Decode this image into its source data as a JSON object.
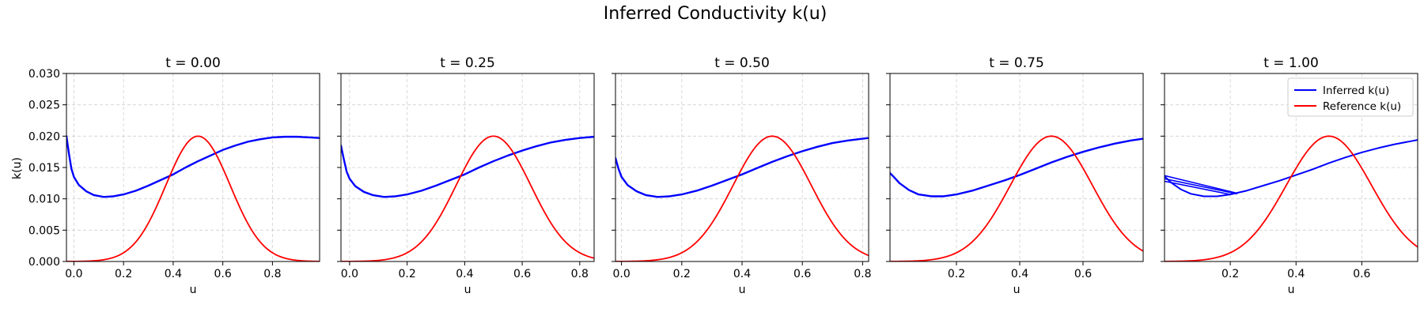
{
  "figure": {
    "title": "Inferred Conductivity k(u)",
    "ylabel": "k(u)",
    "ylim": [
      0,
      0.03
    ],
    "yticks": [
      "0.000",
      "0.005",
      "0.010",
      "0.015",
      "0.020",
      "0.025",
      "0.030"
    ],
    "grid": true,
    "colors": {
      "inferred": "#0000ff",
      "reference": "#ff0000",
      "grid": "#b0b0b0"
    },
    "legend": {
      "placement": "upper-right",
      "panel": 4,
      "entries": [
        {
          "label": "Inferred k(u)",
          "color": "#0000ff"
        },
        {
          "label": "Reference k(u)",
          "color": "#ff0000"
        }
      ]
    }
  },
  "chart_data": [
    {
      "type": "line",
      "title": "t = 0.00",
      "xlabel": "u",
      "xlim": [
        -0.03,
        0.99
      ],
      "xticks": [
        "0.0",
        "0.2",
        "0.4",
        "0.6",
        "0.8"
      ],
      "series": [
        {
          "name": "Inferred k(u)",
          "color": "#0000ff",
          "width": 2.4,
          "points": [
            [
              -0.03,
              0.02
            ],
            [
              -0.02,
              0.0172
            ],
            [
              -0.01,
              0.0148
            ],
            [
              0.0,
              0.0135
            ],
            [
              0.02,
              0.0122
            ],
            [
              0.05,
              0.0112
            ],
            [
              0.08,
              0.0106
            ],
            [
              0.12,
              0.0103
            ],
            [
              0.16,
              0.0104
            ],
            [
              0.2,
              0.0107
            ],
            [
              0.25,
              0.0113
            ],
            [
              0.3,
              0.0121
            ],
            [
              0.35,
              0.013
            ],
            [
              0.4,
              0.0139
            ],
            [
              0.45,
              0.015
            ],
            [
              0.5,
              0.016
            ],
            [
              0.55,
              0.0169
            ],
            [
              0.6,
              0.0178
            ],
            [
              0.65,
              0.0185
            ],
            [
              0.7,
              0.0191
            ],
            [
              0.75,
              0.0195
            ],
            [
              0.8,
              0.0198
            ],
            [
              0.85,
              0.0199
            ],
            [
              0.9,
              0.0199
            ],
            [
              0.95,
              0.0198
            ],
            [
              0.99,
              0.0197
            ]
          ]
        },
        {
          "name": "Reference k(u)",
          "color": "#ff0000",
          "width": 1.8,
          "fn": "gauss",
          "xmin": -0.03,
          "xmax": 0.99
        }
      ]
    },
    {
      "type": "line",
      "title": "t = 0.25",
      "xlabel": "u",
      "xlim": [
        -0.03,
        0.85
      ],
      "xticks": [
        "0.0",
        "0.2",
        "0.4",
        "0.6",
        "0.8"
      ],
      "series": [
        {
          "name": "Inferred k(u)",
          "color": "#0000ff",
          "width": 2.4,
          "points": [
            [
              -0.03,
              0.0185
            ],
            [
              -0.02,
              0.0163
            ],
            [
              -0.01,
              0.0143
            ],
            [
              0.0,
              0.0132
            ],
            [
              0.02,
              0.012
            ],
            [
              0.05,
              0.0111
            ],
            [
              0.08,
              0.0106
            ],
            [
              0.12,
              0.0103
            ],
            [
              0.16,
              0.0104
            ],
            [
              0.2,
              0.0107
            ],
            [
              0.25,
              0.0113
            ],
            [
              0.3,
              0.0121
            ],
            [
              0.35,
              0.013
            ],
            [
              0.4,
              0.0139
            ],
            [
              0.45,
              0.015
            ],
            [
              0.5,
              0.016
            ],
            [
              0.55,
              0.0169
            ],
            [
              0.6,
              0.0177
            ],
            [
              0.65,
              0.0184
            ],
            [
              0.7,
              0.019
            ],
            [
              0.75,
              0.0194
            ],
            [
              0.8,
              0.0197
            ],
            [
              0.85,
              0.0199
            ]
          ]
        },
        {
          "name": "Reference k(u)",
          "color": "#ff0000",
          "width": 1.8,
          "fn": "gauss",
          "xmin": -0.03,
          "xmax": 0.85
        }
      ]
    },
    {
      "type": "line",
      "title": "t = 0.50",
      "xlabel": "u",
      "xlim": [
        -0.02,
        0.82
      ],
      "xticks": [
        "0.0",
        "0.2",
        "0.4",
        "0.6",
        "0.8"
      ],
      "series": [
        {
          "name": "Inferred k(u)",
          "color": "#0000ff",
          "width": 2.4,
          "points": [
            [
              -0.02,
              0.0165
            ],
            [
              -0.01,
              0.0148
            ],
            [
              0.0,
              0.0135
            ],
            [
              0.02,
              0.0122
            ],
            [
              0.05,
              0.0112
            ],
            [
              0.08,
              0.0106
            ],
            [
              0.12,
              0.0103
            ],
            [
              0.16,
              0.0104
            ],
            [
              0.2,
              0.0107
            ],
            [
              0.25,
              0.0113
            ],
            [
              0.3,
              0.0121
            ],
            [
              0.35,
              0.013
            ],
            [
              0.4,
              0.0139
            ],
            [
              0.45,
              0.0149
            ],
            [
              0.5,
              0.0159
            ],
            [
              0.55,
              0.0168
            ],
            [
              0.6,
              0.0176
            ],
            [
              0.65,
              0.0183
            ],
            [
              0.7,
              0.0189
            ],
            [
              0.75,
              0.0193
            ],
            [
              0.8,
              0.0196
            ],
            [
              0.82,
              0.0197
            ]
          ]
        },
        {
          "name": "Reference k(u)",
          "color": "#ff0000",
          "width": 1.8,
          "fn": "gauss",
          "xmin": -0.02,
          "xmax": 0.82
        }
      ]
    },
    {
      "type": "line",
      "title": "t = 0.75",
      "xlabel": "u",
      "xlim": [
        -0.01,
        0.79
      ],
      "xticks": [
        "0.2",
        "0.4",
        "0.6"
      ],
      "series": [
        {
          "name": "Inferred k(u)",
          "color": "#0000ff",
          "width": 2.4,
          "points": [
            [
              -0.01,
              0.0141
            ],
            [
              0.0,
              0.0136
            ],
            [
              0.02,
              0.0125
            ],
            [
              0.05,
              0.0114
            ],
            [
              0.08,
              0.0107
            ],
            [
              0.12,
              0.0104
            ],
            [
              0.16,
              0.0104
            ],
            [
              0.2,
              0.0107
            ],
            [
              0.25,
              0.0113
            ],
            [
              0.3,
              0.0121
            ],
            [
              0.35,
              0.0129
            ],
            [
              0.4,
              0.0138
            ],
            [
              0.45,
              0.0148
            ],
            [
              0.5,
              0.0158
            ],
            [
              0.55,
              0.0167
            ],
            [
              0.6,
              0.0175
            ],
            [
              0.65,
              0.0182
            ],
            [
              0.7,
              0.0188
            ],
            [
              0.75,
              0.0193
            ],
            [
              0.79,
              0.0196
            ]
          ]
        },
        {
          "name": "Reference k(u)",
          "color": "#ff0000",
          "width": 1.8,
          "fn": "gauss",
          "xmin": -0.01,
          "xmax": 0.79
        }
      ]
    },
    {
      "type": "line",
      "title": "t = 1.00",
      "xlabel": "u",
      "xlim": [
        0.0,
        0.77
      ],
      "xticks": [
        "0.2",
        "0.4",
        "0.6"
      ],
      "series": [
        {
          "name": "Inferred k(u)",
          "color": "#0000ff",
          "width": 1.6,
          "points": [
            [
              0.0,
              0.0137
            ],
            [
              0.22,
              0.0109
            ]
          ]
        },
        {
          "name": "Inferred k(u)",
          "color": "#0000ff",
          "width": 1.6,
          "points": [
            [
              0.0,
              0.0132
            ],
            [
              0.22,
              0.0108
            ]
          ]
        },
        {
          "name": "Inferred k(u)",
          "color": "#0000ff",
          "width": 1.6,
          "points": [
            [
              0.0,
              0.0128
            ],
            [
              0.2,
              0.0107
            ]
          ]
        },
        {
          "name": "Inferred k(u)",
          "color": "#0000ff",
          "width": 2.0,
          "points": [
            [
              0.0,
              0.0136
            ],
            [
              0.02,
              0.0126
            ],
            [
              0.05,
              0.0115
            ],
            [
              0.08,
              0.0108
            ],
            [
              0.12,
              0.0104
            ],
            [
              0.16,
              0.0104
            ],
            [
              0.2,
              0.0107
            ],
            [
              0.25,
              0.0113
            ],
            [
              0.3,
              0.0121
            ],
            [
              0.35,
              0.0129
            ],
            [
              0.4,
              0.0138
            ],
            [
              0.45,
              0.0147
            ],
            [
              0.5,
              0.0157
            ],
            [
              0.55,
              0.0166
            ],
            [
              0.6,
              0.0174
            ],
            [
              0.65,
              0.0181
            ],
            [
              0.7,
              0.0187
            ],
            [
              0.75,
              0.0192
            ],
            [
              0.77,
              0.0194
            ]
          ]
        },
        {
          "name": "Reference k(u)",
          "color": "#ff0000",
          "width": 1.8,
          "fn": "gauss",
          "xmin": 0.0,
          "xmax": 0.77
        }
      ]
    }
  ]
}
